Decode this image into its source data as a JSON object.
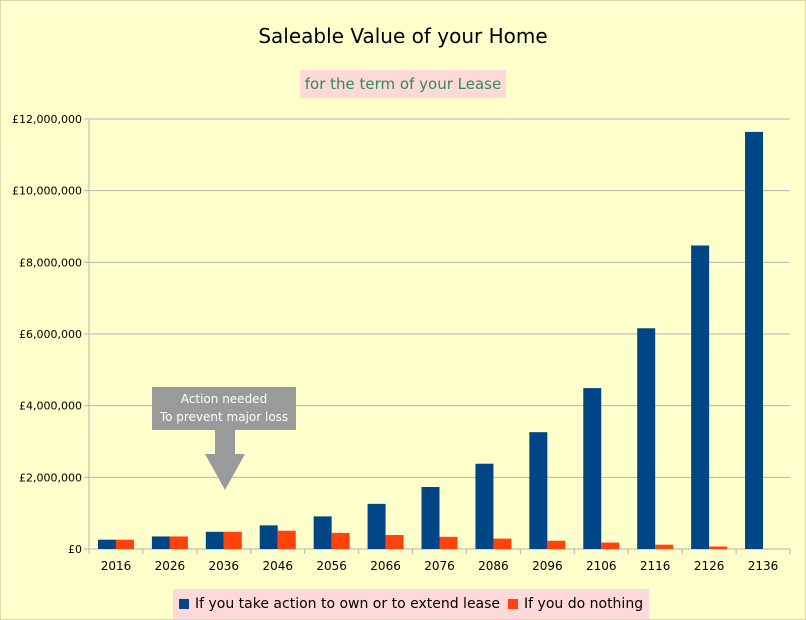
{
  "chart_data": {
    "type": "bar",
    "title": "Saleable Value of your Home",
    "subtitle": "for the term of your Lease",
    "categories": [
      "2016",
      "2026",
      "2036",
      "2046",
      "2056",
      "2066",
      "2076",
      "2086",
      "2096",
      "2106",
      "2116",
      "2126",
      "2136"
    ],
    "series": [
      {
        "name": "If you take action to own or to extend lease",
        "color": "#004586",
        "values": [
          260000,
          350000,
          480000,
          660000,
          910000,
          1260000,
          1730000,
          2380000,
          3260000,
          4490000,
          6160000,
          8470000,
          11640000
        ]
      },
      {
        "name": "If you do nothing",
        "color": "#ff420e",
        "values": [
          260000,
          350000,
          480000,
          510000,
          450000,
          390000,
          340000,
          290000,
          230000,
          180000,
          120000,
          70000,
          0
        ]
      }
    ],
    "ylim": [
      0,
      12000000
    ],
    "yticks": [
      {
        "value": 0,
        "label": "£0"
      },
      {
        "value": 2000000,
        "label": "£2,000,000"
      },
      {
        "value": 4000000,
        "label": "£4,000,000"
      },
      {
        "value": 6000000,
        "label": "£6,000,000"
      },
      {
        "value": 8000000,
        "label": "£8,000,000"
      },
      {
        "value": 10000000,
        "label": "£10,000,000"
      },
      {
        "value": 12000000,
        "label": "£12,000,000"
      }
    ],
    "grid": true,
    "legend_position": "bottom",
    "annotation": {
      "line1": "Action needed",
      "line2": "To prevent major loss",
      "points_to": "2036"
    }
  }
}
